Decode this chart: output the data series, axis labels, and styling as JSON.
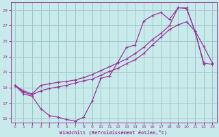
{
  "background_color": "#c8eaea",
  "grid_color": "#9ec8c8",
  "line_color": "#993399",
  "xlabel": "Windchill (Refroidissement éolien,°C)",
  "xlabel_color": "#993399",
  "tick_color": "#993399",
  "spine_color": "#993399",
  "xlim": [
    -0.5,
    23.5
  ],
  "ylim": [
    14.5,
    30.0
  ],
  "yticks": [
    15,
    17,
    19,
    21,
    23,
    25,
    27,
    29
  ],
  "xticks": [
    0,
    1,
    2,
    3,
    4,
    5,
    6,
    7,
    8,
    9,
    10,
    11,
    12,
    13,
    14,
    15,
    16,
    17,
    18,
    19,
    20,
    21,
    22,
    23
  ],
  "line1_x": [
    0,
    1,
    2,
    3,
    4,
    5,
    6,
    7,
    8,
    9,
    10,
    11,
    12,
    13,
    14,
    15,
    16,
    17,
    18,
    19,
    20,
    21,
    22
  ],
  "line1_y": [
    19.3,
    18.2,
    17.9,
    16.3,
    15.4,
    15.2,
    14.9,
    14.7,
    15.2,
    17.3,
    20.2,
    20.5,
    22.3,
    24.2,
    24.5,
    27.6,
    28.3,
    28.7,
    27.8,
    29.3,
    29.3,
    26.2,
    22.0
  ],
  "line2_x": [
    0,
    1,
    2,
    3,
    4,
    5,
    6,
    7,
    8,
    9,
    10,
    11,
    12,
    13,
    14,
    15,
    16,
    17,
    18,
    19,
    20,
    21,
    22,
    23
  ],
  "line2_y": [
    19.3,
    18.6,
    18.2,
    19.3,
    19.5,
    19.7,
    19.8,
    20.0,
    20.3,
    20.7,
    21.2,
    21.7,
    22.2,
    22.7,
    23.4,
    24.2,
    25.2,
    26.0,
    27.0,
    29.3,
    29.2,
    26.2,
    22.2,
    22.0
  ],
  "line3_x": [
    0,
    1,
    2,
    3,
    4,
    5,
    6,
    7,
    8,
    9,
    10,
    11,
    12,
    13,
    14,
    15,
    16,
    17,
    18,
    19,
    20,
    21,
    22,
    23
  ],
  "line3_y": [
    19.3,
    18.4,
    18.1,
    18.6,
    18.9,
    19.1,
    19.3,
    19.6,
    19.9,
    20.1,
    20.6,
    21.1,
    21.5,
    22.1,
    22.6,
    23.4,
    24.5,
    25.5,
    26.5,
    27.1,
    27.5,
    26.3,
    24.3,
    22.2
  ]
}
